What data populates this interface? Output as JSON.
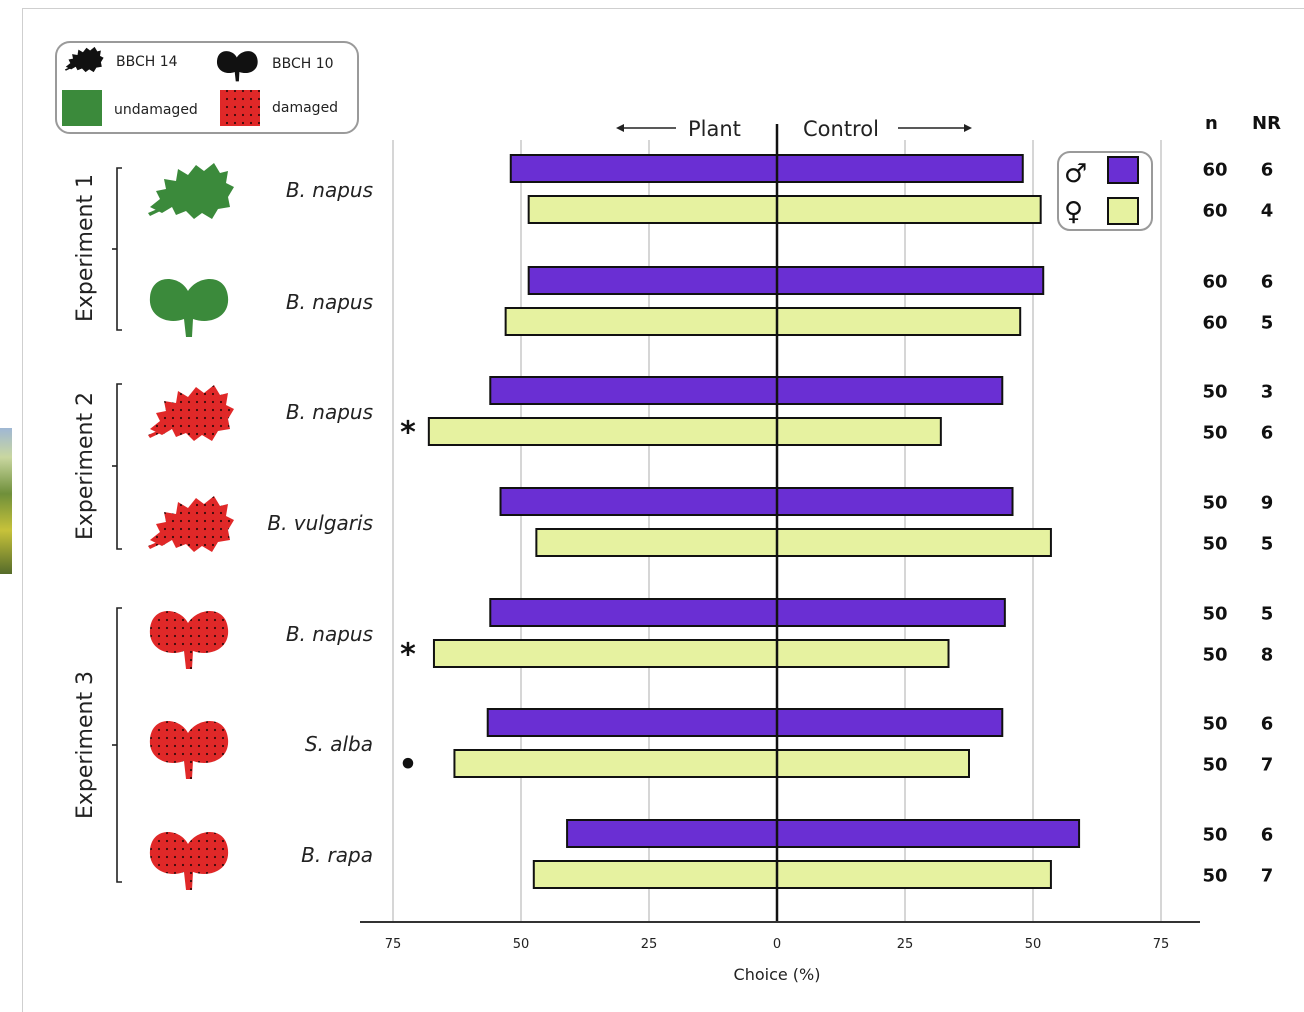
{
  "colors": {
    "male": "#6a2fd3",
    "female": "#e6f2a0",
    "undamaged": "#3b8a3b",
    "damaged": "#e02828",
    "grid": "#d6d6d6"
  },
  "legend": {
    "bbch14": "BBCH 14",
    "bbch10": "BBCH 10",
    "undamaged": "undamaged",
    "damaged": "damaged"
  },
  "sex_legend": {
    "male_symbol": "♂",
    "female_symbol": "♀"
  },
  "directions": {
    "left": "Plant",
    "right": "Control"
  },
  "count_headers": {
    "n": "n",
    "nr": "NR"
  },
  "experiments": [
    "Experiment 1",
    "Experiment 2",
    "Experiment 3"
  ],
  "chart_data": {
    "type": "bar",
    "orientation": "horizontal-diverging",
    "xlabel": "Choice (%)",
    "x_ticks": [
      "75",
      "50",
      "25",
      "0",
      "25",
      "50",
      "75"
    ],
    "xlim": [
      -75,
      75
    ],
    "grid": true,
    "series_names": [
      "male",
      "female"
    ],
    "groups": [
      {
        "experiment": "Experiment 1",
        "species": "B. napus",
        "stage": "BBCH 14",
        "condition": "undamaged",
        "male": {
          "plant": 52,
          "control": 48,
          "n": "60",
          "nr": "6",
          "sig": ""
        },
        "female": {
          "plant": 48.5,
          "control": 51.5,
          "n": "60",
          "nr": "4",
          "sig": ""
        }
      },
      {
        "experiment": "Experiment 1",
        "species": "B. napus",
        "stage": "BBCH 10",
        "condition": "undamaged",
        "male": {
          "plant": 48.5,
          "control": 52,
          "n": "60",
          "nr": "6",
          "sig": ""
        },
        "female": {
          "plant": 53,
          "control": 47.5,
          "n": "60",
          "nr": "5",
          "sig": ""
        }
      },
      {
        "experiment": "Experiment 2",
        "species": "B. napus",
        "stage": "BBCH 14",
        "condition": "damaged",
        "male": {
          "plant": 56,
          "control": 44,
          "n": "50",
          "nr": "3",
          "sig": ""
        },
        "female": {
          "plant": 68,
          "control": 32,
          "n": "50",
          "nr": "6",
          "sig": "*"
        }
      },
      {
        "experiment": "Experiment 2",
        "species": "B. vulgaris",
        "stage": "BBCH 14",
        "condition": "damaged",
        "male": {
          "plant": 54,
          "control": 46,
          "n": "50",
          "nr": "9",
          "sig": ""
        },
        "female": {
          "plant": 47,
          "control": 53.5,
          "n": "50",
          "nr": "5",
          "sig": ""
        }
      },
      {
        "experiment": "Experiment 3",
        "species": "B. napus",
        "stage": "BBCH 10",
        "condition": "damaged",
        "male": {
          "plant": 56,
          "control": 44.5,
          "n": "50",
          "nr": "5",
          "sig": ""
        },
        "female": {
          "plant": 67,
          "control": 33.5,
          "n": "50",
          "nr": "8",
          "sig": "*"
        }
      },
      {
        "experiment": "Experiment 3",
        "species": "S. alba",
        "stage": "BBCH 10",
        "condition": "damaged",
        "male": {
          "plant": 56.5,
          "control": 44,
          "n": "50",
          "nr": "6",
          "sig": ""
        },
        "female": {
          "plant": 63,
          "control": 37.5,
          "n": "50",
          "nr": "7",
          "sig": "•"
        }
      },
      {
        "experiment": "Experiment 3",
        "species": "B. rapa",
        "stage": "BBCH 10",
        "condition": "damaged",
        "male": {
          "plant": 41,
          "control": 59,
          "n": "50",
          "nr": "6",
          "sig": ""
        },
        "female": {
          "plant": 47.5,
          "control": 53.5,
          "n": "50",
          "nr": "7",
          "sig": ""
        }
      }
    ]
  }
}
